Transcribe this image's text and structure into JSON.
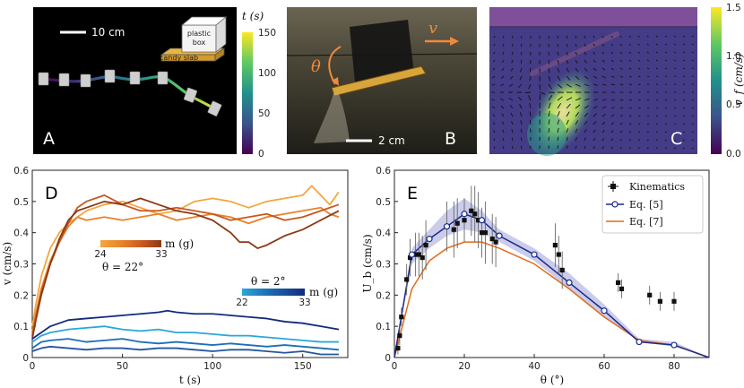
{
  "panels": {
    "A": {
      "letter": "A",
      "scale_label": "10 cm",
      "box_label_line1": "plastic",
      "box_label_line2": "box",
      "slab_label": "candy slab",
      "colorbar": {
        "label": "t (s)",
        "ticks": [
          "150",
          "100",
          "50",
          "0"
        ],
        "range": [
          0,
          150
        ]
      }
    },
    "B": {
      "letter": "B",
      "theta_label": "θ",
      "velocity_label": "v",
      "scale_label": "2 cm"
    },
    "C": {
      "letter": "C",
      "colorbar": {
        "label": "v_f (cm/s)",
        "ticks": [
          "1.5",
          "1.0",
          "0.5",
          "0.0"
        ],
        "range": [
          0,
          1.5
        ]
      }
    },
    "D": {
      "letter": "D"
    },
    "E": {
      "letter": "E"
    }
  },
  "colors": {
    "orange_light": "#f4a640",
    "orange_mid": "#e8822a",
    "orange_dark": "#c7581e",
    "brown": "#8c3a14",
    "blue_light": "#2aa7d8",
    "blue_mid": "#1c6fb4",
    "blue_dark": "#132b7e",
    "eq5": "#1a2a8c",
    "eq7": "#e36a1a",
    "kinematics": "#111111"
  },
  "chart_data": [
    {
      "panel": "D",
      "type": "line",
      "xlabel": "t (s)",
      "ylabel": "v (cm/s)",
      "xlim": [
        0,
        175
      ],
      "ylim": [
        0,
        0.6
      ],
      "xticks": [
        0,
        50,
        100,
        150
      ],
      "yticks": [
        0,
        0.1,
        0.2,
        0.3,
        0.4,
        0.5,
        0.6
      ],
      "legends": [
        {
          "title": "θ = 22°",
          "label": "m (g)",
          "min": "24",
          "max": "33"
        },
        {
          "title": "θ = 2°",
          "label": "m (g)",
          "min": "22",
          "max": "33"
        }
      ],
      "series": [
        {
          "name": "θ=22°, m=24 g",
          "color": "#f4a640",
          "t": [
            0,
            2,
            5,
            10,
            15,
            20,
            25,
            30,
            40,
            50,
            60,
            70,
            80,
            90,
            100,
            110,
            120,
            130,
            140,
            150,
            155,
            160,
            165,
            170
          ],
          "v": [
            0.1,
            0.17,
            0.26,
            0.35,
            0.4,
            0.43,
            0.45,
            0.47,
            0.49,
            0.5,
            0.48,
            0.46,
            0.47,
            0.5,
            0.51,
            0.5,
            0.48,
            0.5,
            0.51,
            0.52,
            0.55,
            0.52,
            0.49,
            0.53
          ]
        },
        {
          "name": "θ=22°, m=27 g",
          "color": "#e8822a",
          "t": [
            0,
            2,
            5,
            10,
            15,
            20,
            25,
            30,
            40,
            50,
            60,
            70,
            80,
            90,
            100,
            110,
            120,
            130,
            140,
            150,
            160,
            165,
            170
          ],
          "v": [
            0.08,
            0.14,
            0.22,
            0.31,
            0.37,
            0.42,
            0.45,
            0.44,
            0.45,
            0.44,
            0.45,
            0.46,
            0.44,
            0.45,
            0.46,
            0.45,
            0.43,
            0.45,
            0.46,
            0.47,
            0.48,
            0.46,
            0.45
          ]
        },
        {
          "name": "θ=22°, m=30 g",
          "color": "#c7581e",
          "t": [
            0,
            2,
            5,
            10,
            15,
            20,
            25,
            30,
            40,
            50,
            60,
            70,
            80,
            90,
            100,
            110,
            120,
            130,
            140,
            150,
            160,
            170
          ],
          "v": [
            0.07,
            0.13,
            0.21,
            0.3,
            0.37,
            0.43,
            0.48,
            0.5,
            0.52,
            0.49,
            0.47,
            0.47,
            0.48,
            0.47,
            0.46,
            0.44,
            0.45,
            0.46,
            0.44,
            0.45,
            0.47,
            0.49
          ]
        },
        {
          "name": "θ=22°, m=33 g",
          "color": "#8c3a14",
          "t": [
            0,
            2,
            5,
            10,
            15,
            20,
            25,
            30,
            40,
            50,
            60,
            70,
            80,
            90,
            100,
            110,
            115,
            120,
            125,
            130,
            140,
            150,
            160,
            170
          ],
          "v": [
            0.06,
            0.12,
            0.2,
            0.3,
            0.38,
            0.44,
            0.47,
            0.48,
            0.5,
            0.49,
            0.51,
            0.49,
            0.47,
            0.46,
            0.44,
            0.4,
            0.37,
            0.37,
            0.35,
            0.36,
            0.39,
            0.41,
            0.44,
            0.47
          ]
        },
        {
          "name": "θ=2°, m=22 g",
          "color": "#2aa7d8",
          "t": [
            0,
            5,
            10,
            20,
            30,
            40,
            50,
            60,
            70,
            80,
            90,
            100,
            110,
            120,
            130,
            140,
            150,
            160,
            170
          ],
          "v": [
            0.05,
            0.07,
            0.08,
            0.09,
            0.095,
            0.1,
            0.09,
            0.085,
            0.09,
            0.08,
            0.08,
            0.075,
            0.07,
            0.07,
            0.065,
            0.06,
            0.055,
            0.05,
            0.05
          ]
        },
        {
          "name": "θ=2°, m=25 g",
          "color": "#1c6fb4",
          "t": [
            0,
            5,
            10,
            20,
            30,
            40,
            50,
            60,
            70,
            80,
            90,
            100,
            110,
            120,
            130,
            140,
            150,
            160,
            170
          ],
          "v": [
            0.03,
            0.05,
            0.055,
            0.06,
            0.05,
            0.055,
            0.06,
            0.05,
            0.045,
            0.05,
            0.045,
            0.04,
            0.045,
            0.04,
            0.035,
            0.04,
            0.035,
            0.03,
            0.025
          ]
        },
        {
          "name": "θ=2°, m=28 g",
          "color": "#2456a0",
          "t": [
            0,
            5,
            10,
            20,
            30,
            40,
            50,
            60,
            70,
            80,
            90,
            100,
            110,
            120,
            130,
            140,
            150,
            160,
            170
          ],
          "v": [
            0.02,
            0.03,
            0.035,
            0.03,
            0.025,
            0.03,
            0.03,
            0.025,
            0.03,
            0.03,
            0.025,
            0.02,
            0.025,
            0.025,
            0.02,
            0.015,
            0.02,
            0.01,
            0.01
          ]
        },
        {
          "name": "θ=2°, m=33 g",
          "color": "#132b7e",
          "t": [
            0,
            5,
            10,
            20,
            30,
            40,
            50,
            60,
            70,
            75,
            80,
            90,
            100,
            110,
            120,
            130,
            140,
            150,
            160,
            170
          ],
          "v": [
            0.06,
            0.08,
            0.1,
            0.12,
            0.125,
            0.13,
            0.135,
            0.14,
            0.145,
            0.15,
            0.145,
            0.14,
            0.14,
            0.135,
            0.13,
            0.125,
            0.115,
            0.11,
            0.1,
            0.09
          ]
        }
      ]
    },
    {
      "panel": "E",
      "type": "scatter",
      "xlabel": "θ (°)",
      "ylabel": "U_b (cm/s)",
      "xlim": [
        0,
        90
      ],
      "ylim": [
        0,
        0.6
      ],
      "xticks": [
        0,
        20,
        40,
        60,
        80
      ],
      "yticks": [
        0,
        0.1,
        0.2,
        0.3,
        0.4,
        0.5,
        0.6
      ],
      "legend": [
        {
          "label": "Kinematics",
          "marker": "errorbar-square"
        },
        {
          "label": "Eq. [5]",
          "marker": "line-circle"
        },
        {
          "label": "Eq. [7]",
          "marker": "line"
        }
      ],
      "kinematics": [
        {
          "x": 1,
          "y": 0.03,
          "err": 0.02
        },
        {
          "x": 1.5,
          "y": 0.07,
          "err": 0.03
        },
        {
          "x": 2,
          "y": 0.13,
          "err": 0.03
        },
        {
          "x": 3.5,
          "y": 0.25,
          "err": 0.05
        },
        {
          "x": 4.5,
          "y": 0.32,
          "err": 0.06
        },
        {
          "x": 6,
          "y": 0.33,
          "err": 0.07
        },
        {
          "x": 7,
          "y": 0.33,
          "err": 0.07
        },
        {
          "x": 8,
          "y": 0.32,
          "err": 0.07
        },
        {
          "x": 9,
          "y": 0.36,
          "err": 0.08
        },
        {
          "x": 15,
          "y": 0.42,
          "err": 0.08
        },
        {
          "x": 17,
          "y": 0.41,
          "err": 0.09
        },
        {
          "x": 18,
          "y": 0.43,
          "err": 0.08
        },
        {
          "x": 20,
          "y": 0.44,
          "err": 0.07
        },
        {
          "x": 22,
          "y": 0.47,
          "err": 0.08
        },
        {
          "x": 23,
          "y": 0.46,
          "err": 0.09
        },
        {
          "x": 24,
          "y": 0.44,
          "err": 0.09
        },
        {
          "x": 25,
          "y": 0.4,
          "err": 0.08
        },
        {
          "x": 26,
          "y": 0.4,
          "err": 0.1
        },
        {
          "x": 28,
          "y": 0.38,
          "err": 0.08
        },
        {
          "x": 29,
          "y": 0.37,
          "err": 0.08
        },
        {
          "x": 46,
          "y": 0.36,
          "err": 0.07
        },
        {
          "x": 47,
          "y": 0.33,
          "err": 0.06
        },
        {
          "x": 48,
          "y": 0.28,
          "err": 0.06
        },
        {
          "x": 64,
          "y": 0.24,
          "err": 0.03
        },
        {
          "x": 65,
          "y": 0.22,
          "err": 0.03
        },
        {
          "x": 73,
          "y": 0.2,
          "err": 0.03
        },
        {
          "x": 76,
          "y": 0.18,
          "err": 0.03
        },
        {
          "x": 80,
          "y": 0.18,
          "err": 0.03
        }
      ],
      "eq5": {
        "x": [
          0,
          5,
          10,
          15,
          20,
          25,
          30,
          40,
          50,
          60,
          70,
          80,
          90
        ],
        "y": [
          0,
          0.33,
          0.38,
          0.42,
          0.46,
          0.44,
          0.39,
          0.33,
          0.24,
          0.15,
          0.05,
          0.04,
          0.0
        ],
        "band_hi": [
          0,
          0.35,
          0.41,
          0.47,
          0.51,
          0.47,
          0.41,
          0.35,
          0.27,
          0.17,
          0.06,
          0.05,
          0.0
        ],
        "band_lo": [
          0,
          0.3,
          0.35,
          0.39,
          0.41,
          0.4,
          0.37,
          0.31,
          0.22,
          0.13,
          0.05,
          0.035,
          0.0
        ]
      },
      "eq7": {
        "x": [
          0,
          5,
          10,
          15,
          20,
          25,
          30,
          40,
          50,
          60,
          70,
          80,
          90
        ],
        "y": [
          0,
          0.22,
          0.31,
          0.35,
          0.37,
          0.37,
          0.35,
          0.3,
          0.22,
          0.13,
          0.055,
          0.04,
          0.0
        ]
      }
    }
  ]
}
